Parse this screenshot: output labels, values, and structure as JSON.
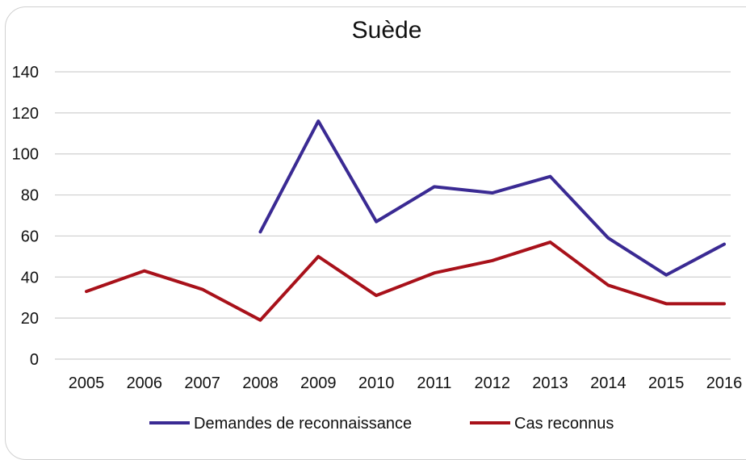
{
  "chart_data": {
    "type": "line",
    "title": "Suède",
    "xlabel": "",
    "ylabel": "",
    "categories": [
      "2005",
      "2006",
      "2007",
      "2008",
      "2009",
      "2010",
      "2011",
      "2012",
      "2013",
      "2014",
      "2015",
      "2016"
    ],
    "ylim": [
      0,
      140
    ],
    "yticks": [
      0,
      20,
      40,
      60,
      80,
      100,
      120,
      140
    ],
    "grid": true,
    "legend_position": "bottom",
    "series": [
      {
        "name": "Demandes de reconnaissance",
        "color": "#3a2a93",
        "values": [
          null,
          null,
          null,
          62,
          116,
          67,
          84,
          81,
          89,
          59,
          41,
          56
        ]
      },
      {
        "name": "Cas reconnus",
        "color": "#a8111a",
        "values": [
          33,
          43,
          34,
          19,
          50,
          31,
          42,
          48,
          57,
          36,
          27,
          27
        ]
      }
    ]
  }
}
